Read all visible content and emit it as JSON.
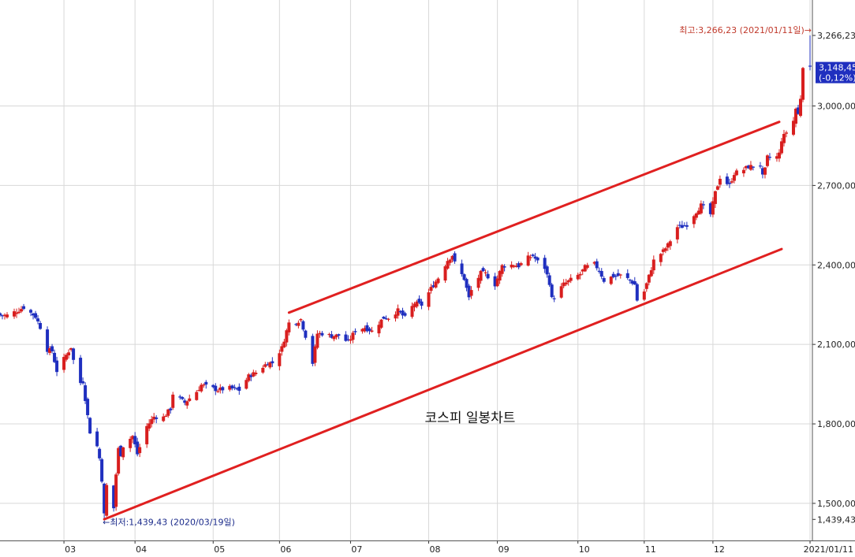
{
  "chart_data": {
    "type": "candlestick",
    "title": "코스피 일봉차트",
    "ylim": [
      1360,
      3400
    ],
    "xlim": [
      "2020-02-04",
      "2021-01-12"
    ],
    "yticks": [
      {
        "value": 1439.43,
        "label": "1,439,43"
      },
      {
        "value": 1500,
        "label": "1,500,00"
      },
      {
        "value": 1800,
        "label": "1,800,00"
      },
      {
        "value": 2100,
        "label": "2,100,00"
      },
      {
        "value": 2400,
        "label": "2,400,00"
      },
      {
        "value": 2700,
        "label": "2,700,00"
      },
      {
        "value": 3000,
        "label": "3,000,00"
      },
      {
        "value": 3266.23,
        "label": "3,266,23"
      }
    ],
    "xticks": [
      {
        "date": "2020-03-02",
        "label": "03"
      },
      {
        "date": "2020-04-01",
        "label": "04"
      },
      {
        "date": "2020-05-04",
        "label": "05"
      },
      {
        "date": "2020-06-01",
        "label": "06"
      },
      {
        "date": "2020-07-01",
        "label": "07"
      },
      {
        "date": "2020-08-03",
        "label": "08"
      },
      {
        "date": "2020-09-01",
        "label": "09"
      },
      {
        "date": "2020-10-05",
        "label": "10"
      },
      {
        "date": "2020-11-02",
        "label": "11"
      },
      {
        "date": "2020-12-01",
        "label": "12"
      },
      {
        "date": "2021-01-11",
        "label": "2021/01/11"
      }
    ],
    "up_color": "#d81e1e",
    "down_color": "#1f2fbf",
    "trendline_color": "#e02020",
    "trendlines": [
      {
        "name": "upper",
        "start": [
          "2020-06-05",
          2220
        ],
        "end": [
          "2020-12-29",
          2940
        ]
      },
      {
        "name": "lower",
        "start": [
          "2020-03-19",
          1440
        ],
        "end": [
          "2020-12-30",
          2460
        ]
      }
    ],
    "annotations": {
      "max": {
        "date": "2021-01-11",
        "value": 3266.23,
        "text": "최고:3,266,23 (2021/01/11일)→"
      },
      "min": {
        "date": "2020-03-19",
        "value": 1439.43,
        "text": "←최저:1,439,43 (2020/03/19일)"
      }
    },
    "last_price": {
      "value": 3148.45,
      "label": "3,148,45",
      "change": "(-0,12%)",
      "box_color": "#1f2fbf"
    },
    "anchors": [
      [
        "2020-02-04",
        2210
      ],
      [
        "2020-02-07",
        2210
      ],
      [
        "2020-02-12",
        2230
      ],
      [
        "2020-02-14",
        2240
      ],
      [
        "2020-02-19",
        2205
      ],
      [
        "2020-02-21",
        2165
      ],
      [
        "2020-02-24",
        2080
      ],
      [
        "2020-02-26",
        2075
      ],
      [
        "2020-02-28",
        2000
      ],
      [
        "2020-03-03",
        2060
      ],
      [
        "2020-03-05",
        2090
      ],
      [
        "2020-03-06",
        2040
      ],
      [
        "2020-03-09",
        1955
      ],
      [
        "2020-03-10",
        1960
      ],
      [
        "2020-03-12",
        1830
      ],
      [
        "2020-03-13",
        1770
      ],
      [
        "2020-03-16",
        1715
      ],
      [
        "2020-03-17",
        1670
      ],
      [
        "2020-03-18",
        1590
      ],
      [
        "2020-03-19",
        1457
      ],
      [
        "2020-03-20",
        1567
      ],
      [
        "2020-03-23",
        1482
      ],
      [
        "2020-03-24",
        1610
      ],
      [
        "2020-03-25",
        1705
      ],
      [
        "2020-03-26",
        1686
      ],
      [
        "2020-03-27",
        1717
      ],
      [
        "2020-03-31",
        1754
      ],
      [
        "2020-04-02",
        1686
      ],
      [
        "2020-04-06",
        1791
      ],
      [
        "2020-04-09",
        1827
      ],
      [
        "2020-04-13",
        1825
      ],
      [
        "2020-04-16",
        1857
      ],
      [
        "2020-04-17",
        1914
      ],
      [
        "2020-04-22",
        1880
      ],
      [
        "2020-04-27",
        1922
      ],
      [
        "2020-04-29",
        1947
      ],
      [
        "2020-05-06",
        1928
      ],
      [
        "2020-05-11",
        1935
      ],
      [
        "2020-05-15",
        1927
      ],
      [
        "2020-05-19",
        1980
      ],
      [
        "2020-05-22",
        1994
      ],
      [
        "2020-05-27",
        2031
      ],
      [
        "2020-05-29",
        2030
      ],
      [
        "2020-06-02",
        2087
      ],
      [
        "2020-06-04",
        2151
      ],
      [
        "2020-06-05",
        2181
      ],
      [
        "2020-06-08",
        2184
      ],
      [
        "2020-06-10",
        2195
      ],
      [
        "2020-06-12",
        2132
      ],
      [
        "2020-06-15",
        2030
      ],
      [
        "2020-06-17",
        2141
      ],
      [
        "2020-06-19",
        2141
      ],
      [
        "2020-06-23",
        2132
      ],
      [
        "2020-06-26",
        2134
      ],
      [
        "2020-06-30",
        2108
      ],
      [
        "2020-07-03",
        2152
      ],
      [
        "2020-07-07",
        2164
      ],
      [
        "2020-07-10",
        2150
      ],
      [
        "2020-07-15",
        2201
      ],
      [
        "2020-07-17",
        2201
      ],
      [
        "2020-07-21",
        2228
      ],
      [
        "2020-07-24",
        2200
      ],
      [
        "2020-07-28",
        2256
      ],
      [
        "2020-07-31",
        2249
      ],
      [
        "2020-08-04",
        2311
      ],
      [
        "2020-08-07",
        2351
      ],
      [
        "2020-08-11",
        2418
      ],
      [
        "2020-08-13",
        2437
      ],
      [
        "2020-08-14",
        2407
      ],
      [
        "2020-08-18",
        2348
      ],
      [
        "2020-08-20",
        2274
      ],
      [
        "2020-08-21",
        2304
      ],
      [
        "2020-08-25",
        2369
      ],
      [
        "2020-08-27",
        2367
      ],
      [
        "2020-08-31",
        2326
      ],
      [
        "2020-09-03",
        2396
      ],
      [
        "2020-09-08",
        2401
      ],
      [
        "2020-09-10",
        2396
      ],
      [
        "2020-09-14",
        2427
      ],
      [
        "2020-09-16",
        2435
      ],
      [
        "2020-09-18",
        2412
      ],
      [
        "2020-09-21",
        2389
      ],
      [
        "2020-09-23",
        2333
      ],
      [
        "2020-09-24",
        2272
      ],
      [
        "2020-09-25",
        2278
      ],
      [
        "2020-09-29",
        2327
      ],
      [
        "2020-10-06",
        2366
      ],
      [
        "2020-10-08",
        2391
      ],
      [
        "2020-10-12",
        2403
      ],
      [
        "2020-10-14",
        2380
      ],
      [
        "2020-10-16",
        2341
      ],
      [
        "2020-10-20",
        2358
      ],
      [
        "2020-10-23",
        2360
      ],
      [
        "2020-10-27",
        2343
      ],
      [
        "2020-10-29",
        2326
      ],
      [
        "2020-10-30",
        2267
      ],
      [
        "2020-11-02",
        2300
      ],
      [
        "2020-11-04",
        2357
      ],
      [
        "2020-11-06",
        2416
      ],
      [
        "2020-11-10",
        2452
      ],
      [
        "2020-11-12",
        2475
      ],
      [
        "2020-11-16",
        2543
      ],
      [
        "2020-11-18",
        2545
      ],
      [
        "2020-11-20",
        2553
      ],
      [
        "2020-11-24",
        2602
      ],
      [
        "2020-11-26",
        2625
      ],
      [
        "2020-11-30",
        2591
      ],
      [
        "2020-12-02",
        2672
      ],
      [
        "2020-12-04",
        2731
      ],
      [
        "2020-12-08",
        2700
      ],
      [
        "2020-12-10",
        2746
      ],
      [
        "2020-12-14",
        2760
      ],
      [
        "2020-12-16",
        2771
      ],
      [
        "2020-12-18",
        2772
      ],
      [
        "2020-12-21",
        2778
      ],
      [
        "2020-12-22",
        2733
      ],
      [
        "2020-12-23",
        2759
      ],
      [
        "2020-12-24",
        2806
      ],
      [
        "2020-12-28",
        2808
      ],
      [
        "2020-12-29",
        2820
      ],
      [
        "2020-12-30",
        2873
      ],
      [
        "2021-01-04",
        2944
      ],
      [
        "2021-01-05",
        2990
      ],
      [
        "2021-01-06",
        2968
      ],
      [
        "2021-01-07",
        3031
      ],
      [
        "2021-01-08",
        3152
      ],
      [
        "2021-01-11",
        3148
      ]
    ]
  }
}
